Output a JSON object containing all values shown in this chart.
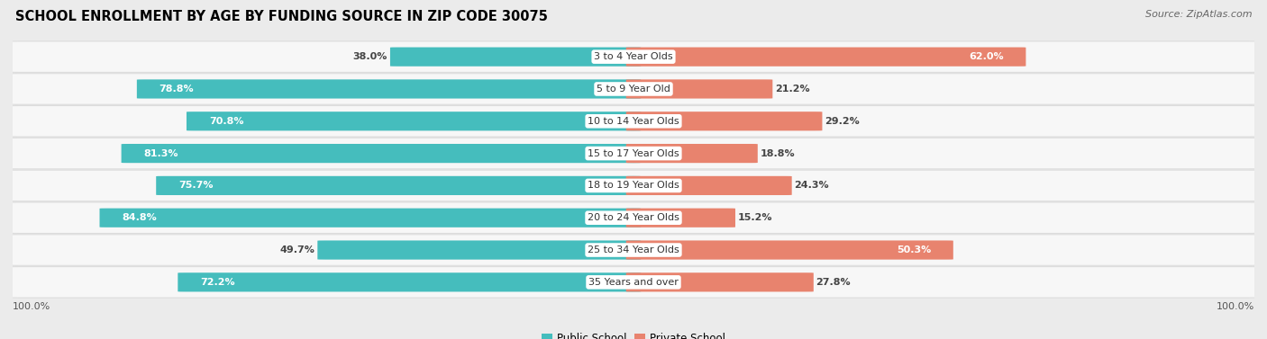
{
  "title": "SCHOOL ENROLLMENT BY AGE BY FUNDING SOURCE IN ZIP CODE 30075",
  "source": "Source: ZipAtlas.com",
  "categories": [
    "3 to 4 Year Olds",
    "5 to 9 Year Old",
    "10 to 14 Year Olds",
    "15 to 17 Year Olds",
    "18 to 19 Year Olds",
    "20 to 24 Year Olds",
    "25 to 34 Year Olds",
    "35 Years and over"
  ],
  "public_values": [
    38.0,
    78.8,
    70.8,
    81.3,
    75.7,
    84.8,
    49.7,
    72.2
  ],
  "private_values": [
    62.0,
    21.2,
    29.2,
    18.8,
    24.3,
    15.2,
    50.3,
    27.8
  ],
  "public_color": "#45BDBD",
  "private_color": "#E8836E",
  "bg_color": "#EBEBEB",
  "row_bg_color": "#F7F7F7",
  "row_edge_color": "#DDDDDD",
  "title_fontsize": 10.5,
  "label_fontsize": 8.0,
  "value_fontsize": 8.0,
  "legend_fontsize": 8.5,
  "source_fontsize": 8.0,
  "axis_label_fontsize": 8.0
}
